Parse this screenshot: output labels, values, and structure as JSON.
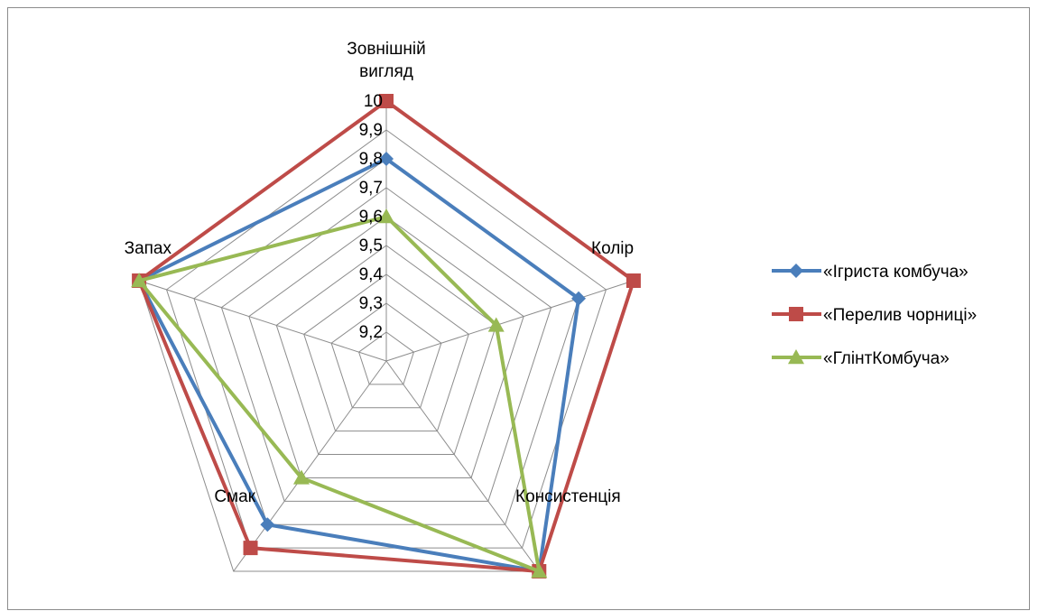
{
  "chart_data": {
    "type": "radar",
    "axes": [
      "Зовнішній вигляд",
      "Колір",
      "Консистенція",
      "Смак",
      "Запах"
    ],
    "axis_label_lines": [
      [
        "Зовнішній",
        "вигляд"
      ],
      [
        "Колір"
      ],
      [
        "Консистенція"
      ],
      [
        "Смак"
      ],
      [
        "Запах"
      ]
    ],
    "rlim": [
      9.1,
      10
    ],
    "ticks": [
      9.2,
      9.3,
      9.4,
      9.5,
      9.6,
      9.7,
      9.8,
      9.9,
      10
    ],
    "tick_labels": [
      "9,2",
      "9,3",
      "9,4",
      "9,5",
      "9,6",
      "9,7",
      "9,8",
      "9,9",
      "10"
    ],
    "grid": true,
    "legend_position": "right",
    "series": [
      {
        "name": "«Ігриста комбуча»",
        "marker": "diamond",
        "color": "#4a7ebb",
        "values": [
          9.8,
          9.8,
          10,
          9.8,
          10
        ]
      },
      {
        "name": "«Перелив чорниці»",
        "marker": "square",
        "color": "#be4b48",
        "values": [
          10,
          10,
          10,
          9.9,
          10
        ]
      },
      {
        "name": "«ГлінтКомбуча»",
        "marker": "triangle",
        "color": "#98b954",
        "values": [
          9.6,
          9.5,
          10,
          9.6,
          10
        ]
      }
    ]
  }
}
